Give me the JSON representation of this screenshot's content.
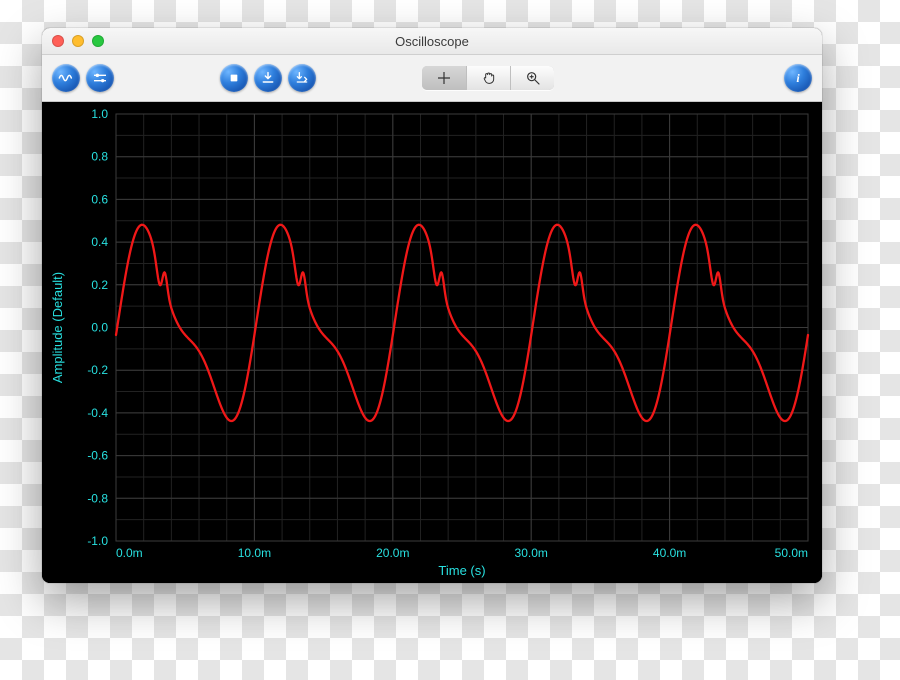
{
  "window": {
    "title": "Oscilloscope",
    "traffic_light_colors": {
      "close": "#ff5f57",
      "minimize": "#ffbd2e",
      "zoom": "#28c840"
    }
  },
  "toolbar": {
    "buttons": {
      "waveform": "waveform",
      "settings": "settings",
      "stop": "stop",
      "save": "save",
      "export": "export",
      "info": "info"
    },
    "segmented": {
      "crosshair": "crosshair",
      "hand": "hand",
      "zoom": "zoom",
      "active": "crosshair"
    }
  },
  "plot": {
    "type": "line",
    "background_color": "#000000",
    "grid_color": "#3b3b3b",
    "grid_minor_color": "#222222",
    "axis_color": "#28e0e0",
    "trace_color": "#f01818",
    "trace_width": 2.3,
    "xlabel": "Time (s)",
    "ylabel": "Amplitude (Default)",
    "label_fontsize": 13,
    "tick_fontsize": 12,
    "xlim": [
      0,
      50
    ],
    "ylim": [
      -1.0,
      1.0
    ],
    "xticks": [
      0,
      10,
      20,
      30,
      40,
      50
    ],
    "xtick_labels": [
      "0.0m",
      "10.0m",
      "20.0m",
      "30.0m",
      "40.0m",
      "50.0m"
    ],
    "yticks": [
      -1.0,
      -0.8,
      -0.6,
      -0.4,
      -0.2,
      0.0,
      0.2,
      0.4,
      0.6,
      0.8,
      1.0
    ],
    "ytick_labels": [
      "-1.0",
      "-0.8",
      "-0.6",
      "-0.4",
      "-0.2",
      "0.0",
      "0.2",
      "0.4",
      "0.6",
      "0.8",
      "1.0"
    ],
    "minor_step": 2,
    "waveform": {
      "period_ms": 10.0,
      "amp_lo": -0.47,
      "amp_hi": 0.5,
      "spike_peak": 0.61,
      "phase_start": "zero_rising"
    }
  }
}
